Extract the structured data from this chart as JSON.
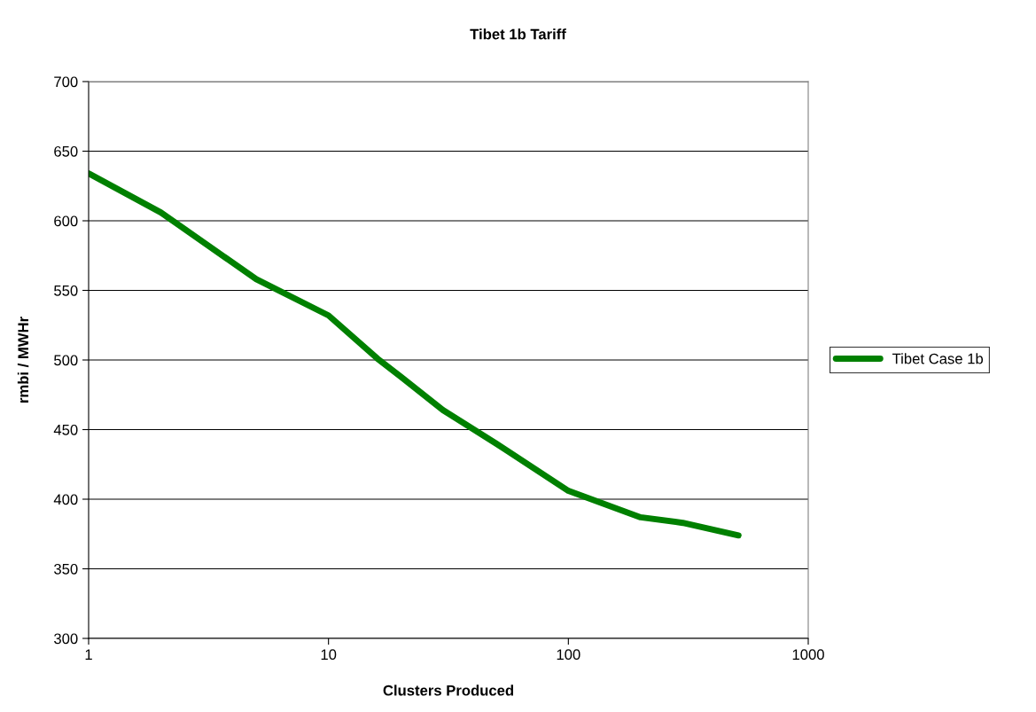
{
  "chart_data": {
    "type": "line",
    "title": "Tibet 1b Tariff",
    "xlabel": "Clusters Produced",
    "ylabel": "rmbi / MWHr",
    "series": [
      {
        "name": "Tibet Case 1b",
        "color": "#008000",
        "x": [
          1,
          2,
          5,
          10,
          16,
          20,
          30,
          50,
          100,
          200,
          300,
          512
        ],
        "values": [
          634,
          606,
          558,
          532,
          501,
          488,
          464,
          440,
          406,
          387,
          383,
          374
        ]
      }
    ],
    "log": "x",
    "xlim": [
      1,
      1000
    ],
    "xticks": [
      1,
      10,
      100,
      1000
    ],
    "ylim": [
      300,
      700
    ],
    "yticks": [
      300,
      350,
      400,
      450,
      500,
      550,
      600,
      650,
      700
    ],
    "grid": "y",
    "legend": "right",
    "marker": "none",
    "line_style": "solid"
  }
}
